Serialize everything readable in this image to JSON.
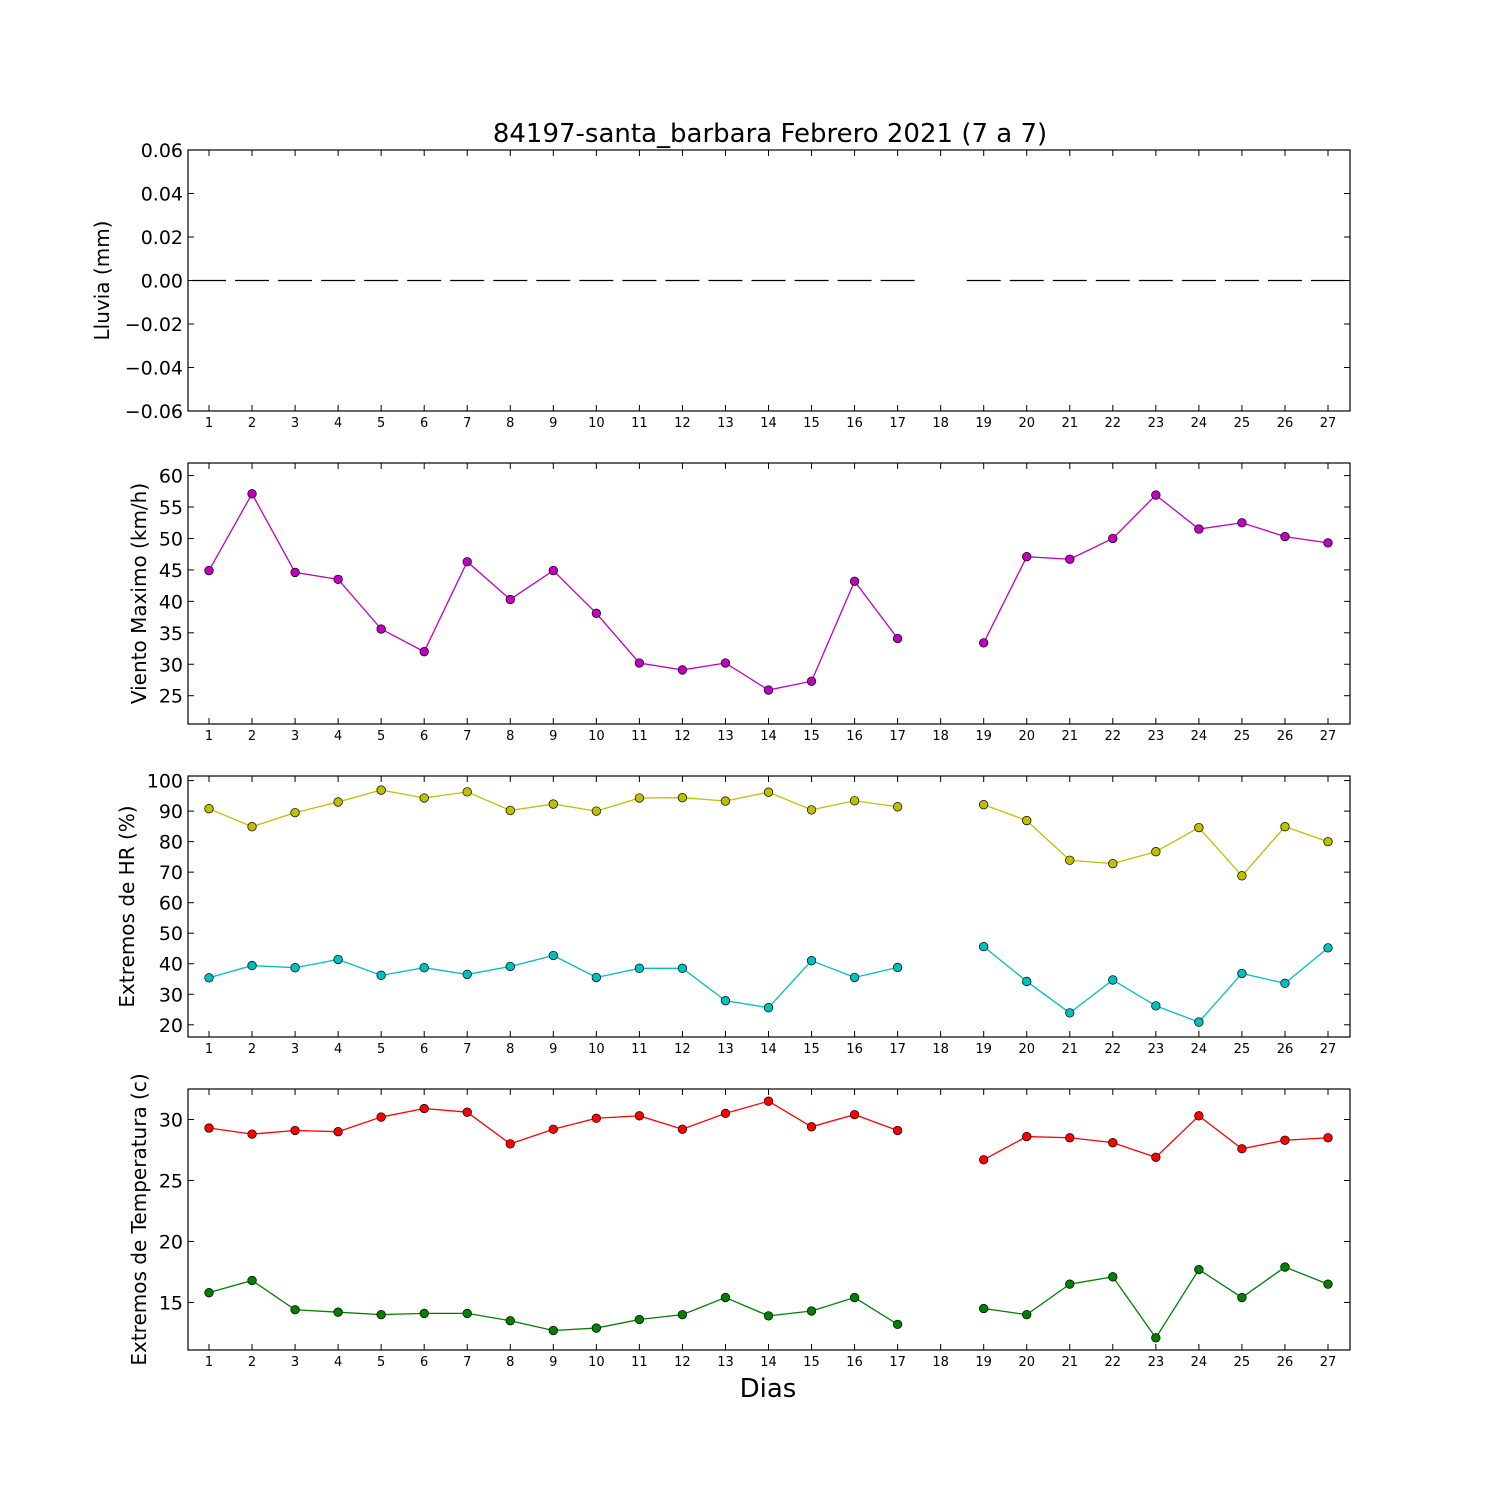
{
  "chart_data": {
    "type": "line",
    "title": "84197-santa_barbara Febrero 2021  (7 a 7)",
    "xlabel": "Dias",
    "days": [
      "1",
      "2",
      "3",
      "4",
      "5",
      "6",
      "7",
      "8",
      "9",
      "10",
      "11",
      "12",
      "13",
      "14",
      "15",
      "16",
      "17",
      "18",
      "19",
      "20",
      "21",
      "22",
      "23",
      "24",
      "25",
      "26",
      "27"
    ],
    "panels": [
      {
        "ylabel": "Lluvia (mm)",
        "ylim": [
          -0.06,
          0.06
        ],
        "yticks": [
          "0.06",
          "0.04",
          "0.02",
          "0.00",
          "−0.02",
          "−0.04",
          "−0.06"
        ],
        "ytick_values": [
          0.06,
          0.04,
          0.02,
          0.0,
          -0.02,
          -0.04,
          -0.06
        ],
        "kind": "bars",
        "series": [
          {
            "color": "#000000",
            "values": [
              0,
              0,
              0,
              0,
              0,
              0,
              0,
              0,
              0,
              0,
              0,
              0,
              0,
              0,
              0,
              0,
              0,
              null,
              0,
              0,
              0,
              0,
              0,
              0,
              0,
              0,
              0
            ]
          }
        ]
      },
      {
        "ylabel": "Viento Maximo (km/h)",
        "ylim": [
          20.5,
          62
        ],
        "yticks": [
          "60",
          "55",
          "50",
          "45",
          "40",
          "35",
          "30",
          "25"
        ],
        "ytick_values": [
          60,
          55,
          50,
          45,
          40,
          35,
          30,
          25
        ],
        "kind": "line",
        "series": [
          {
            "color": "#bf00bf",
            "values": [
              44.9,
              57.1,
              44.6,
              43.5,
              35.6,
              32.0,
              46.3,
              40.3,
              44.9,
              38.1,
              30.2,
              29.1,
              30.2,
              25.9,
              27.3,
              43.2,
              34.1,
              null,
              33.4,
              47.1,
              46.7,
              50.0,
              56.9,
              51.5,
              52.5,
              50.3,
              49.3
            ]
          }
        ]
      },
      {
        "ylabel": "Extremos de HR (%)",
        "ylim": [
          16,
          101.5
        ],
        "yticks": [
          "100",
          "90",
          "80",
          "70",
          "60",
          "50",
          "40",
          "30",
          "20"
        ],
        "ytick_values": [
          100,
          90,
          80,
          70,
          60,
          50,
          40,
          30,
          20
        ],
        "kind": "line",
        "series": [
          {
            "color": "#bfbf00",
            "values": [
              90.8,
              84.9,
              89.5,
              93.0,
              96.9,
              94.3,
              96.3,
              90.2,
              92.3,
              90.0,
              94.3,
              94.4,
              93.3,
              96.2,
              90.4,
              93.4,
              91.4,
              null,
              92.1,
              86.9,
              73.9,
              72.8,
              76.7,
              84.6,
              68.8,
              84.9,
              80.0
            ]
          },
          {
            "color": "#00bfbf",
            "values": [
              35.4,
              39.4,
              38.7,
              41.4,
              36.2,
              38.7,
              36.5,
              39.1,
              42.7,
              35.5,
              38.5,
              38.5,
              27.9,
              25.6,
              41.0,
              35.5,
              38.8,
              null,
              45.6,
              34.2,
              23.9,
              34.7,
              26.2,
              20.9,
              36.8,
              33.6,
              45.2
            ]
          }
        ]
      },
      {
        "ylabel": "Extremos de Temperatura (c)",
        "ylim": [
          11.1,
          32.5
        ],
        "yticks": [
          "30",
          "25",
          "20",
          "15"
        ],
        "ytick_values": [
          30,
          25,
          20,
          15
        ],
        "kind": "line",
        "series": [
          {
            "color": "#ff0000",
            "values": [
              29.3,
              28.8,
              29.1,
              29.0,
              30.2,
              30.9,
              30.6,
              28.0,
              29.2,
              30.1,
              30.3,
              29.2,
              30.5,
              31.5,
              29.4,
              30.4,
              29.1,
              null,
              26.7,
              28.6,
              28.5,
              28.1,
              26.9,
              30.3,
              27.6,
              28.3,
              28.5
            ]
          },
          {
            "color": "#007f00",
            "values": [
              15.8,
              16.8,
              14.4,
              14.2,
              14.0,
              14.1,
              14.1,
              13.5,
              12.7,
              12.9,
              13.6,
              14.0,
              15.4,
              13.9,
              14.3,
              15.4,
              13.2,
              null,
              14.5,
              14.0,
              16.5,
              17.1,
              12.1,
              17.7,
              15.4,
              17.9,
              16.5
            ]
          }
        ]
      }
    ]
  }
}
